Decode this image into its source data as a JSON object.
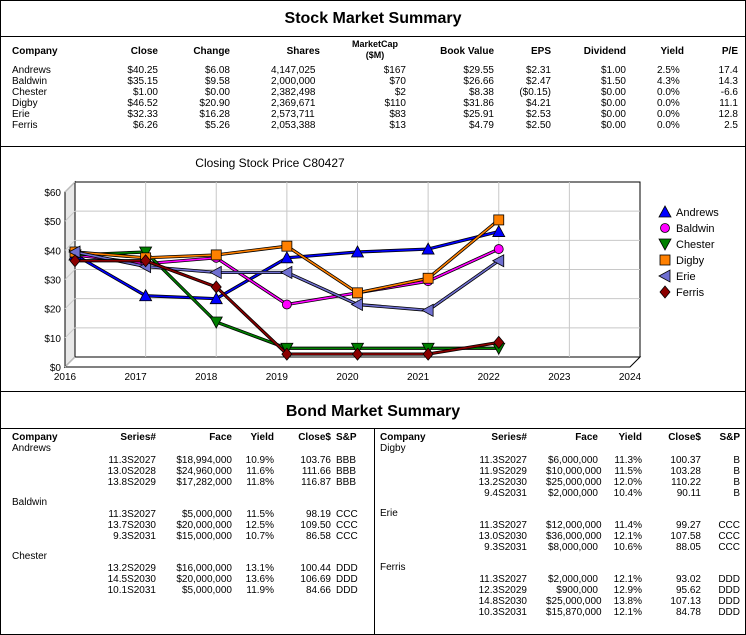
{
  "stock": {
    "title": "Stock Market Summary",
    "headers": {
      "company": "Company",
      "close": "Close",
      "change": "Change",
      "shares": "Shares",
      "marketcap": "MarketCap",
      "marketcap_unit": "($M)",
      "book": "Book Value",
      "eps": "EPS",
      "dividend": "Dividend",
      "yield": "Yield",
      "pe": "P/E"
    },
    "rows": [
      {
        "company": "Andrews",
        "close": "$40.25",
        "change": "$6.08",
        "shares": "4,147,025",
        "marketcap": "$167",
        "book": "$29.55",
        "eps": "$2.31",
        "dividend": "$1.00",
        "yield": "2.5%",
        "pe": "17.4"
      },
      {
        "company": "Baldwin",
        "close": "$35.15",
        "change": "$9.58",
        "shares": "2,000,000",
        "marketcap": "$70",
        "book": "$26.66",
        "eps": "$2.47",
        "dividend": "$1.50",
        "yield": "4.3%",
        "pe": "14.3"
      },
      {
        "company": "Chester",
        "close": "$1.00",
        "change": "$0.00",
        "shares": "2,382,498",
        "marketcap": "$2",
        "book": "$8.38",
        "eps": "($0.15)",
        "dividend": "$0.00",
        "yield": "0.0%",
        "pe": "-6.6"
      },
      {
        "company": "Digby",
        "close": "$46.52",
        "change": "$20.90",
        "shares": "2,369,671",
        "marketcap": "$110",
        "book": "$31.86",
        "eps": "$4.21",
        "dividend": "$0.00",
        "yield": "0.0%",
        "pe": "11.1"
      },
      {
        "company": "Erie",
        "close": "$32.33",
        "change": "$16.28",
        "shares": "2,573,711",
        "marketcap": "$83",
        "book": "$25.91",
        "eps": "$2.53",
        "dividend": "$0.00",
        "yield": "0.0%",
        "pe": "12.8"
      },
      {
        "company": "Ferris",
        "close": "$6.26",
        "change": "$5.26",
        "shares": "2,053,388",
        "marketcap": "$13",
        "book": "$4.79",
        "eps": "$2.50",
        "dividend": "$0.00",
        "yield": "0.0%",
        "pe": "2.5"
      }
    ]
  },
  "chart_data": {
    "type": "line",
    "title": "Closing Stock Price  C80427",
    "x": [
      2016,
      2017,
      2018,
      2019,
      2020,
      2021,
      2022
    ],
    "x_ticks": [
      "2016",
      "2017",
      "2018",
      "2019",
      "2020",
      "2021",
      "2022",
      "2023",
      "2024"
    ],
    "xlim": [
      2016,
      2024
    ],
    "y_ticks": [
      "$0",
      "$10",
      "$20",
      "$30",
      "$40",
      "$50",
      "$60"
    ],
    "ylim": [
      0,
      60
    ],
    "grid": true,
    "legend": "right",
    "series": [
      {
        "name": "Andrews",
        "color": "#0000ff",
        "marker": "triangle-up",
        "values": [
          35,
          21,
          20,
          34,
          36,
          37,
          43
        ]
      },
      {
        "name": "Baldwin",
        "color": "#ff00ff",
        "marker": "circle",
        "values": [
          35,
          32,
          34,
          18,
          22,
          26,
          37
        ]
      },
      {
        "name": "Chester",
        "color": "#008000",
        "marker": "triangle-down",
        "values": [
          35,
          36,
          12,
          3,
          3,
          3,
          3
        ]
      },
      {
        "name": "Digby",
        "color": "#ff8000",
        "marker": "square",
        "values": [
          36,
          34,
          35,
          38,
          22,
          27,
          47
        ]
      },
      {
        "name": "Erie",
        "color": "#6f6fd0",
        "marker": "triangle-left",
        "values": [
          36,
          31,
          29,
          29,
          18,
          16,
          33
        ]
      },
      {
        "name": "Ferris",
        "color": "#8b0000",
        "marker": "diamond",
        "values": [
          33,
          33,
          24,
          1,
          1,
          1,
          5
        ]
      }
    ]
  },
  "bond": {
    "title": "Bond Market Summary",
    "headers": {
      "company": "Company",
      "series": "Series#",
      "face": "Face",
      "yield": "Yield",
      "close": "Close$",
      "sp": "S&P"
    },
    "left": [
      {
        "company": "Andrews",
        "rows": [
          {
            "series": "11.3S2027",
            "face": "$18,994,000",
            "yield": "10.9%",
            "close": "103.76",
            "sp": "BBB"
          },
          {
            "series": "13.0S2028",
            "face": "$24,960,000",
            "yield": "11.6%",
            "close": "111.66",
            "sp": "BBB"
          },
          {
            "series": "13.8S2029",
            "face": "$17,282,000",
            "yield": "11.8%",
            "close": "116.87",
            "sp": "BBB"
          }
        ]
      },
      {
        "company": "Baldwin",
        "rows": [
          {
            "series": "11.3S2027",
            "face": "$5,000,000",
            "yield": "11.5%",
            "close": "98.19",
            "sp": "CCC"
          },
          {
            "series": "13.7S2030",
            "face": "$20,000,000",
            "yield": "12.5%",
            "close": "109.50",
            "sp": "CCC"
          },
          {
            "series": "9.3S2031",
            "face": "$15,000,000",
            "yield": "10.7%",
            "close": "86.58",
            "sp": "CCC"
          }
        ]
      },
      {
        "company": "Chester",
        "rows": [
          {
            "series": "13.2S2029",
            "face": "$16,000,000",
            "yield": "13.1%",
            "close": "100.44",
            "sp": "DDD"
          },
          {
            "series": "14.5S2030",
            "face": "$20,000,000",
            "yield": "13.6%",
            "close": "106.69",
            "sp": "DDD"
          },
          {
            "series": "10.1S2031",
            "face": "$5,000,000",
            "yield": "11.9%",
            "close": "84.66",
            "sp": "DDD"
          }
        ]
      }
    ],
    "right": [
      {
        "company": "Digby",
        "rows": [
          {
            "series": "11.3S2027",
            "face": "$6,000,000",
            "yield": "11.3%",
            "close": "100.37",
            "sp": "B"
          },
          {
            "series": "11.9S2029",
            "face": "$10,000,000",
            "yield": "11.5%",
            "close": "103.28",
            "sp": "B"
          },
          {
            "series": "13.2S2030",
            "face": "$25,000,000",
            "yield": "12.0%",
            "close": "110.22",
            "sp": "B"
          },
          {
            "series": "9.4S2031",
            "face": "$2,000,000",
            "yield": "10.4%",
            "close": "90.11",
            "sp": "B"
          }
        ]
      },
      {
        "company": "Erie",
        "rows": [
          {
            "series": "11.3S2027",
            "face": "$12,000,000",
            "yield": "11.4%",
            "close": "99.27",
            "sp": "CCC"
          },
          {
            "series": "13.0S2030",
            "face": "$36,000,000",
            "yield": "12.1%",
            "close": "107.58",
            "sp": "CCC"
          },
          {
            "series": "9.3S2031",
            "face": "$8,000,000",
            "yield": "10.6%",
            "close": "88.05",
            "sp": "CCC"
          }
        ]
      },
      {
        "company": "Ferris",
        "rows": [
          {
            "series": "11.3S2027",
            "face": "$2,000,000",
            "yield": "12.1%",
            "close": "93.02",
            "sp": "DDD"
          },
          {
            "series": "12.3S2029",
            "face": "$900,000",
            "yield": "12.9%",
            "close": "95.62",
            "sp": "DDD"
          },
          {
            "series": "14.8S2030",
            "face": "$25,000,000",
            "yield": "13.8%",
            "close": "107.13",
            "sp": "DDD"
          },
          {
            "series": "10.3S2031",
            "face": "$15,870,000",
            "yield": "12.1%",
            "close": "84.78",
            "sp": "DDD"
          }
        ]
      }
    ]
  }
}
